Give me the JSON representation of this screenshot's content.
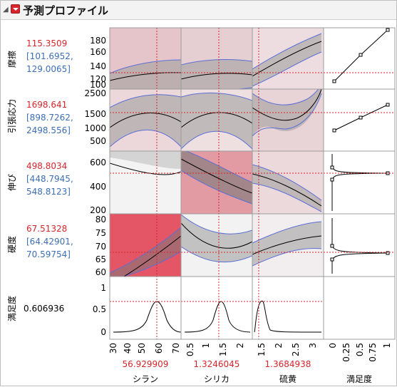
{
  "header": {
    "title": "予測プロファイル"
  },
  "responses": [
    {
      "name": "摩擦",
      "value": "115.3509",
      "ci_low": "[101.6952,",
      "ci_high": "129.0065]"
    },
    {
      "name": "引張応力",
      "value": "1698.641",
      "ci_low": "[898.7262,",
      "ci_high": "2498.556]"
    },
    {
      "name": "伸び",
      "value": "498.8034",
      "ci_low": "[448.7945,",
      "ci_high": "548.8123]"
    },
    {
      "name": "硬度",
      "value": "67.51328",
      "ci_low": "[64.42901,",
      "ci_high": "70.59754]"
    },
    {
      "name": "満足度",
      "value": "0.606936",
      "ci_low": "",
      "ci_high": ""
    }
  ],
  "factors": [
    {
      "name": "シラン",
      "value": "56.929909",
      "ticks": [
        "30",
        "40",
        "50",
        "60",
        "70"
      ]
    },
    {
      "name": "シリカ",
      "value": "1.3246045",
      "ticks": [
        "0.5",
        "1",
        "1.5",
        "2"
      ]
    },
    {
      "name": "硫黄",
      "value": "1.3684938",
      "ticks": [
        "1.5",
        "2",
        "2.5",
        "3"
      ]
    },
    {
      "name": "満足度",
      "value": "",
      "ticks": [
        "0",
        "0.25",
        "0.5",
        "0.75",
        "1"
      ]
    }
  ],
  "y_ticks": [
    [
      "180",
      "160",
      "140",
      "120",
      "100"
    ],
    [
      "2500",
      "1500",
      "1000",
      "500"
    ],
    [
      "600",
      "400",
      "200"
    ],
    [
      "80",
      "75",
      "70",
      "65",
      "60"
    ],
    [
      "1",
      "0.5",
      "0"
    ]
  ],
  "colors": {
    "current_value": "#d6262c",
    "ci_text": "#3d6fb6",
    "band": "#8c8c8c",
    "band_edge": "#5b6fd6",
    "crosshair": "#d6262c"
  }
}
